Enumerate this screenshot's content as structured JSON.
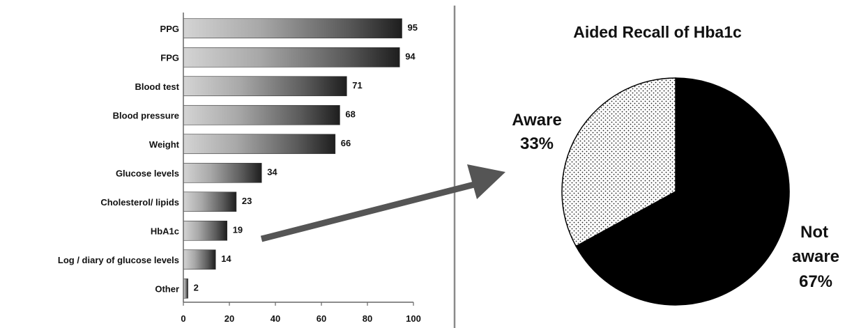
{
  "chart_data": [
    {
      "type": "bar",
      "orientation": "horizontal",
      "categories": [
        "PPG",
        "FPG",
        "Blood test",
        "Blood pressure",
        "Weight",
        "Glucose levels",
        "Cholesterol/ lipids",
        "HbA1c",
        "Log / diary of glucose levels",
        "Other"
      ],
      "values": [
        95,
        94,
        71,
        68,
        66,
        34,
        23,
        19,
        14,
        2
      ],
      "xlim": [
        0,
        100
      ],
      "xticks": [
        0,
        20,
        40,
        60,
        80,
        100
      ],
      "title": "",
      "xlabel": "",
      "ylabel": "",
      "grid": false,
      "bar_fill": "gradient light-to-dark"
    },
    {
      "type": "pie",
      "title": "Aided Recall of Hba1c",
      "slices": [
        {
          "name": "Aware",
          "value": 33,
          "label": "33%",
          "fill": "dotted"
        },
        {
          "name": "Not aware",
          "value": 67,
          "label": "67%",
          "fill": "#000000"
        }
      ]
    }
  ],
  "pie_labels": {
    "aware_line1": "Aware",
    "aware_line2": "33%",
    "not_aware_line1": "Not",
    "not_aware_line2": "aware",
    "not_aware_line3": "67%"
  },
  "colors": {
    "bar_light": "#d4d4d4",
    "bar_dark": "#1e1e1e",
    "arrow": "#555555",
    "divider": "#8a8a8a",
    "pie_dark": "#050505"
  }
}
